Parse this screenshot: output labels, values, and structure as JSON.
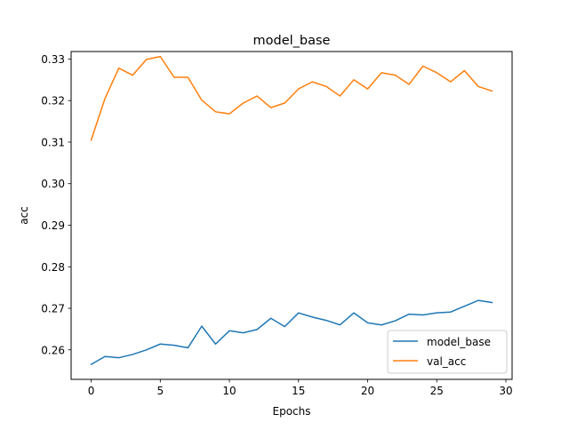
{
  "chart_data": {
    "type": "line",
    "title": "model_base",
    "xlabel": "Epochs",
    "ylabel": "acc",
    "xlim": [
      -1.45,
      30.45
    ],
    "ylim": [
      0.2529,
      0.3318
    ],
    "xticks": [
      0,
      5,
      10,
      15,
      20,
      25,
      30
    ],
    "xtick_labels": [
      "0",
      "5",
      "10",
      "15",
      "20",
      "25",
      "30"
    ],
    "yticks": [
      0.26,
      0.27,
      0.28,
      0.29,
      0.3,
      0.31,
      0.32,
      0.33
    ],
    "ytick_labels": [
      "0.26",
      "0.27",
      "0.28",
      "0.29",
      "0.30",
      "0.31",
      "0.32",
      "0.33"
    ],
    "grid": false,
    "legend_position": "lower right",
    "x": [
      0,
      1,
      2,
      3,
      4,
      5,
      6,
      7,
      8,
      9,
      10,
      11,
      12,
      13,
      14,
      15,
      16,
      17,
      18,
      19,
      20,
      21,
      22,
      23,
      24,
      25,
      26,
      27,
      28,
      29
    ],
    "series": [
      {
        "name": "model_base",
        "color": "#1f77b4",
        "values": [
          0.2565,
          0.2584,
          0.2581,
          0.2589,
          0.26,
          0.2614,
          0.2611,
          0.2605,
          0.2657,
          0.2614,
          0.2646,
          0.2641,
          0.2649,
          0.2676,
          0.2656,
          0.2689,
          0.2679,
          0.2671,
          0.266,
          0.2689,
          0.2665,
          0.266,
          0.267,
          0.2686,
          0.2684,
          0.2689,
          0.2691,
          0.2705,
          0.2719,
          0.2714
        ]
      },
      {
        "name": "val_acc",
        "color": "#ff7f0e",
        "values": [
          0.3105,
          0.3205,
          0.3278,
          0.3261,
          0.3299,
          0.3306,
          0.3256,
          0.3256,
          0.3201,
          0.3173,
          0.3168,
          0.3194,
          0.3211,
          0.3183,
          0.3194,
          0.3228,
          0.3245,
          0.3234,
          0.3211,
          0.325,
          0.3228,
          0.3267,
          0.3261,
          0.3239,
          0.3283,
          0.3267,
          0.3245,
          0.3272,
          0.3234,
          0.3223
        ]
      }
    ]
  }
}
